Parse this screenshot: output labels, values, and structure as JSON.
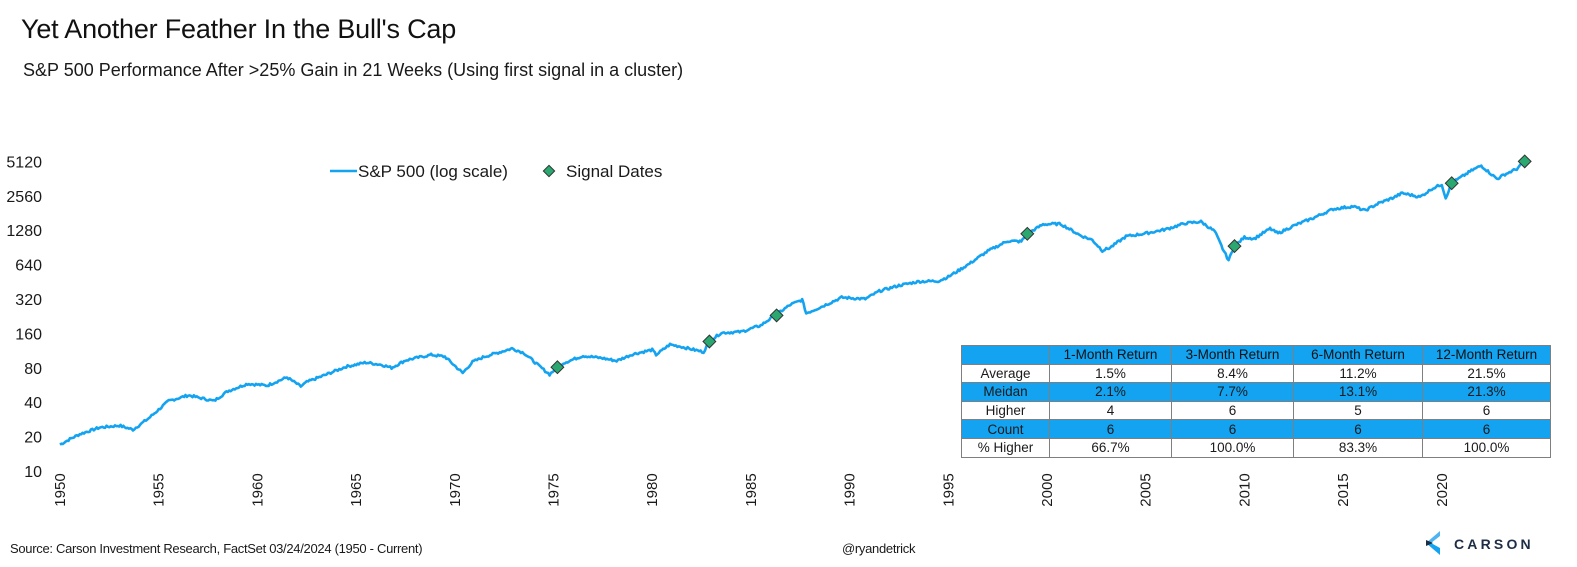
{
  "header": {
    "title": "Yet Another Feather In the Bull's Cap",
    "subtitle": "S&P 500 Performance After >25% Gain in 21 Weeks (Using first signal in a cluster)"
  },
  "footer": {
    "source": "Source: Carson Investment Research, FactSet 03/24/2024 (1950 - Current)",
    "handle": "@ryandetrick",
    "logo_text": "CARSON"
  },
  "colors": {
    "line": "#14a3f0",
    "marker_fill": "#2aa870",
    "marker_stroke": "#333333",
    "table_header": "#14a3f0",
    "logo_dark": "#1d2d44",
    "logo_light": "#4fb3f2"
  },
  "chart_data": {
    "type": "line",
    "title": "Yet Another Feather In the Bull's Cap",
    "subtitle": "S&P 500 Performance After >25% Gain in 21 Weeks (Using first signal in a cluster)",
    "xlabel": "",
    "ylabel": "",
    "yscale": "log2",
    "ylim": [
      10,
      5120
    ],
    "xlim": [
      1950,
      2024.3
    ],
    "yticks": [
      "5120",
      "2560",
      "1280",
      "640",
      "320",
      "160",
      "80",
      "40",
      "20",
      "10"
    ],
    "ytick_values": [
      5120,
      2560,
      1280,
      640,
      320,
      160,
      80,
      40,
      20,
      10
    ],
    "xticks": [
      "1950",
      "1955",
      "1960",
      "1965",
      "1970",
      "1975",
      "1980",
      "1985",
      "1990",
      "1995",
      "2000",
      "2005",
      "2010",
      "2015",
      "2020"
    ],
    "xtick_values": [
      1950,
      1955,
      1960,
      1965,
      1970,
      1975,
      1980,
      1985,
      1990,
      1995,
      2000,
      2005,
      2010,
      2015,
      2020
    ],
    "grid": false,
    "legend": {
      "placement": "top-center",
      "entries": [
        {
          "label": "S&P 500 (log scale)",
          "marker": "line"
        },
        {
          "label": "Signal Dates",
          "marker": "diamond"
        }
      ]
    },
    "series": [
      {
        "name": "S&P 500 (log scale)",
        "x": [
          1950.0,
          1950.5,
          1951.0,
          1952.0,
          1953.0,
          1953.7,
          1954.5,
          1955.5,
          1956.5,
          1957.0,
          1957.8,
          1958.5,
          1959.5,
          1960.5,
          1961.5,
          1962.2,
          1962.5,
          1963.5,
          1964.5,
          1965.5,
          1966.3,
          1966.8,
          1967.5,
          1968.8,
          1969.5,
          1970.4,
          1970.9,
          1971.5,
          1972.9,
          1973.5,
          1974.2,
          1974.8,
          1975.1,
          1975.5,
          1976.5,
          1977.5,
          1978.2,
          1979.0,
          1980.0,
          1980.2,
          1980.9,
          1981.5,
          1982.6,
          1982.9,
          1983.5,
          1984.5,
          1985.5,
          1986.3,
          1987.0,
          1987.6,
          1987.8,
          1988.5,
          1989.6,
          1990.8,
          1991.5,
          1992.5,
          1993.5,
          1994.5,
          1995.0,
          1996.0,
          1997.0,
          1998.0,
          1998.7,
          1999.0,
          1999.8,
          2000.2,
          2000.7,
          2001.7,
          2002.3,
          2002.8,
          2003.2,
          2004.0,
          2005.0,
          2006.0,
          2007.0,
          2007.8,
          2008.5,
          2008.9,
          2009.2,
          2009.5,
          2010.0,
          2010.5,
          2011.3,
          2011.7,
          2012.5,
          2013.5,
          2014.5,
          2015.5,
          2016.1,
          2016.8,
          2017.5,
          2018.0,
          2018.9,
          2019.5,
          2020.0,
          2020.2,
          2020.5,
          2021.0,
          2021.5,
          2022.0,
          2022.4,
          2022.8,
          2023.2,
          2023.8,
          2024.2
        ],
        "values": [
          17,
          19,
          21,
          24,
          25,
          23,
          29,
          41,
          46,
          44,
          41,
          50,
          58,
          56,
          66,
          55,
          60,
          70,
          82,
          89,
          85,
          80,
          93,
          104,
          100,
          72,
          90,
          100,
          118,
          108,
          85,
          70,
          78,
          88,
          102,
          97,
          92,
          105,
          115,
          104,
          128,
          122,
          110,
          136,
          162,
          165,
          188,
          235,
          285,
          315,
          240,
          270,
          330,
          320,
          375,
          420,
          455,
          460,
          500,
          640,
          840,
          1030,
          1020,
          1190,
          1440,
          1450,
          1450,
          1150,
          1050,
          850,
          900,
          1130,
          1200,
          1300,
          1470,
          1520,
          1250,
          880,
          700,
          930,
          1110,
          1080,
          1320,
          1200,
          1400,
          1640,
          1960,
          2070,
          1900,
          2200,
          2450,
          2700,
          2500,
          2950,
          3230,
          2450,
          3300,
          3750,
          4250,
          4700,
          4100,
          3600,
          3950,
          4400,
          5120
        ]
      },
      {
        "name": "Signal Dates",
        "x": [
          1975.2,
          1982.9,
          1986.3,
          1999.0,
          2009.5,
          2020.5,
          2024.2
        ],
        "values": [
          81,
          136,
          230,
          1190,
          930,
          3300,
          5120
        ]
      }
    ],
    "table": {
      "headers": [
        "",
        "1-Month Return",
        "3-Month Return",
        "6-Month Return",
        "12-Month Return"
      ],
      "rows": [
        {
          "label": "Average",
          "values": [
            "1.5%",
            "8.4%",
            "11.2%",
            "21.5%"
          ],
          "style": "white"
        },
        {
          "label": "Meidan",
          "values": [
            "2.1%",
            "7.7%",
            "13.1%",
            "21.3%"
          ],
          "style": "blue"
        },
        {
          "label": "Higher",
          "values": [
            "4",
            "6",
            "5",
            "6"
          ],
          "style": "white"
        },
        {
          "label": "Count",
          "values": [
            "6",
            "6",
            "6",
            "6"
          ],
          "style": "blue"
        },
        {
          "label": "% Higher",
          "values": [
            "66.7%",
            "100.0%",
            "83.3%",
            "100.0%"
          ],
          "style": "white"
        }
      ]
    }
  }
}
